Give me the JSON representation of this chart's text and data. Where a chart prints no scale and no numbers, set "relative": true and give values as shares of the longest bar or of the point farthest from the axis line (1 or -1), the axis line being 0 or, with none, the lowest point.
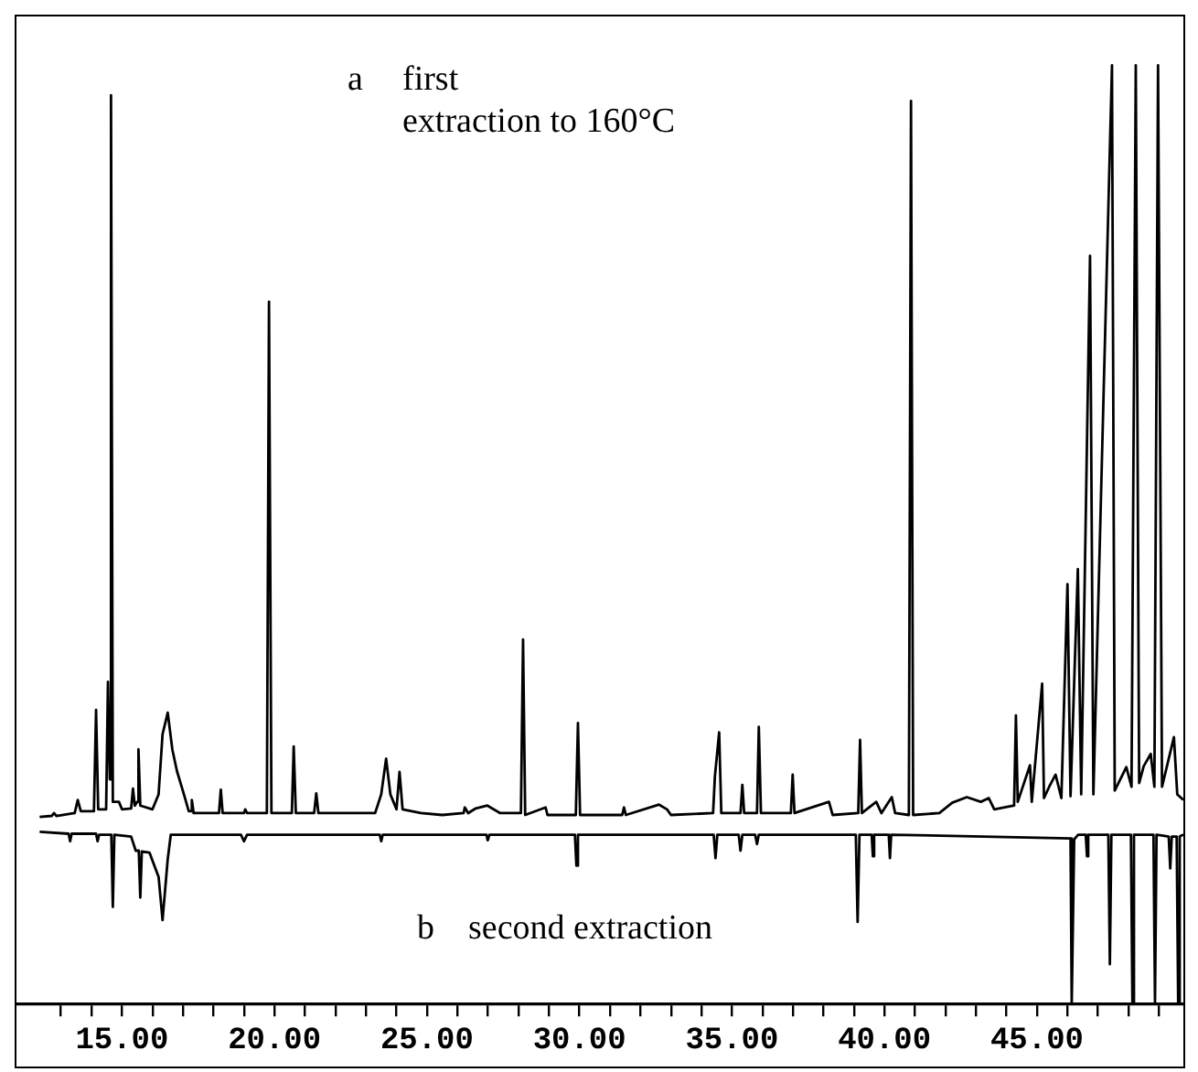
{
  "chart_data": {
    "type": "line",
    "relative": true,
    "marker": "none",
    "xlim": [
      11.6,
      49.8
    ],
    "xticks": [
      {
        "value": 13,
        "label": null
      },
      {
        "value": 14,
        "label": null
      },
      {
        "value": 15,
        "label": "15.00"
      },
      {
        "value": 16,
        "label": null
      },
      {
        "value": 17,
        "label": null
      },
      {
        "value": 18,
        "label": null
      },
      {
        "value": 19,
        "label": null
      },
      {
        "value": 20,
        "label": "20.00"
      },
      {
        "value": 21,
        "label": null
      },
      {
        "value": 22,
        "label": null
      },
      {
        "value": 23,
        "label": null
      },
      {
        "value": 24,
        "label": null
      },
      {
        "value": 25,
        "label": "25.00"
      },
      {
        "value": 26,
        "label": null
      },
      {
        "value": 27,
        "label": null
      },
      {
        "value": 28,
        "label": null
      },
      {
        "value": 29,
        "label": null
      },
      {
        "value": 30,
        "label": "30.00"
      },
      {
        "value": 31,
        "label": null
      },
      {
        "value": 32,
        "label": null
      },
      {
        "value": 33,
        "label": null
      },
      {
        "value": 34,
        "label": null
      },
      {
        "value": 35,
        "label": "35.00"
      },
      {
        "value": 36,
        "label": null
      },
      {
        "value": 37,
        "label": null
      },
      {
        "value": 38,
        "label": null
      },
      {
        "value": 39,
        "label": null
      },
      {
        "value": 40,
        "label": "40.00"
      },
      {
        "value": 41,
        "label": null
      },
      {
        "value": 42,
        "label": null
      },
      {
        "value": 43,
        "label": null
      },
      {
        "value": 44,
        "label": null
      },
      {
        "value": 45,
        "label": "45.00"
      },
      {
        "value": 46,
        "label": null
      },
      {
        "value": 47,
        "label": null
      },
      {
        "value": 48,
        "label": null
      },
      {
        "value": 49,
        "label": null
      }
    ],
    "annotations": [
      "a",
      "first\nextraction to 160°C",
      "b",
      "second extraction"
    ],
    "series": [
      {
        "color": "#000000",
        "x": [
          12.3,
          12.7,
          12.77,
          12.85,
          13.45,
          13.55,
          13.65,
          14.08,
          14.15,
          14.22,
          14.48,
          14.54,
          14.6,
          14.64,
          14.7,
          14.9,
          15.0,
          15.3,
          15.36,
          15.42,
          15.5,
          15.54,
          15.6,
          16.0,
          16.2,
          16.33,
          16.5,
          16.65,
          16.8,
          17.03,
          17.19,
          17.25,
          17.29,
          17.35,
          18.18,
          18.24,
          18.3,
          19.0,
          19.04,
          19.1,
          19.75,
          19.82,
          19.9,
          20.57,
          20.63,
          20.7,
          21.3,
          21.37,
          21.44,
          23.3,
          23.5,
          23.66,
          23.8,
          23.9,
          24.0,
          24.1,
          24.2,
          24.8,
          25.5,
          26.2,
          26.24,
          26.35,
          26.6,
          26.98,
          27.4,
          28.08,
          28.15,
          28.22,
          28.89,
          28.95,
          29.88,
          29.95,
          30.02,
          31.4,
          31.46,
          31.52,
          32.61,
          32.87,
          33.0,
          34.38,
          34.44,
          34.58,
          34.65,
          35.28,
          35.34,
          35.4,
          35.82,
          35.88,
          35.95,
          36.93,
          36.99,
          37.05,
          38.18,
          38.3,
          39.14,
          39.2,
          39.26,
          39.73,
          39.9,
          40.24,
          40.35,
          40.8,
          40.87,
          40.94,
          41.8,
          42.22,
          42.7,
          43.16,
          43.42,
          43.6,
          44.25,
          44.31,
          44.37,
          44.77,
          44.83,
          45.17,
          45.23,
          45.4,
          45.61,
          45.8,
          46.0,
          46.1,
          46.34,
          46.45,
          46.74,
          46.85,
          47.46,
          47.55,
          47.93,
          48.1,
          48.24,
          48.35,
          48.5,
          48.73,
          48.85,
          48.97,
          49.1,
          49.49,
          49.6,
          49.8
        ],
        "values": [
          0.199,
          0.2,
          0.203,
          0.2,
          0.203,
          0.217,
          0.205,
          0.205,
          0.313,
          0.207,
          0.207,
          0.343,
          0.239,
          0.968,
          0.215,
          0.215,
          0.207,
          0.208,
          0.229,
          0.211,
          0.215,
          0.271,
          0.211,
          0.207,
          0.223,
          0.287,
          0.31,
          0.271,
          0.248,
          0.223,
          0.205,
          0.205,
          0.217,
          0.203,
          0.203,
          0.228,
          0.203,
          0.203,
          0.207,
          0.203,
          0.203,
          0.748,
          0.203,
          0.203,
          0.274,
          0.203,
          0.203,
          0.224,
          0.203,
          0.203,
          0.223,
          0.261,
          0.223,
          0.215,
          0.207,
          0.247,
          0.207,
          0.203,
          0.201,
          0.203,
          0.209,
          0.203,
          0.208,
          0.211,
          0.203,
          0.203,
          0.388,
          0.201,
          0.209,
          0.201,
          0.201,
          0.299,
          0.201,
          0.201,
          0.209,
          0.201,
          0.212,
          0.207,
          0.201,
          0.203,
          0.242,
          0.289,
          0.203,
          0.203,
          0.233,
          0.203,
          0.203,
          0.295,
          0.203,
          0.203,
          0.244,
          0.203,
          0.215,
          0.201,
          0.203,
          0.281,
          0.203,
          0.215,
          0.203,
          0.22,
          0.203,
          0.201,
          0.962,
          0.201,
          0.203,
          0.214,
          0.22,
          0.215,
          0.219,
          0.207,
          0.211,
          0.307,
          0.215,
          0.254,
          0.215,
          0.341,
          0.219,
          0.231,
          0.244,
          0.219,
          0.447,
          0.221,
          0.463,
          0.223,
          0.797,
          0.223,
          1,
          0.227,
          0.252,
          0.231,
          1,
          0.235,
          0.253,
          0.266,
          0.231,
          1,
          0.231,
          0.284,
          0.223,
          0.217
        ]
      },
      {
        "color": "#000000",
        "x": [
          12.3,
          13.25,
          13.3,
          13.35,
          14.15,
          14.2,
          14.25,
          14.65,
          14.7,
          14.75,
          15.3,
          15.45,
          15.55,
          15.6,
          15.65,
          15.9,
          16.2,
          16.33,
          16.5,
          16.6,
          18.9,
          19.0,
          19.1,
          23.45,
          23.5,
          23.55,
          26.95,
          26.99,
          27.05,
          29.85,
          29.9,
          29.95,
          34.4,
          34.46,
          34.52,
          35.22,
          35.28,
          35.34,
          35.76,
          35.82,
          35.88,
          39.06,
          39.12,
          39.18,
          39.58,
          39.62,
          39.66,
          40.14,
          40.18,
          40.22,
          46.1,
          46.14,
          46.22,
          46.35,
          46.6,
          46.64,
          46.68,
          47.34,
          47.39,
          47.44,
          48.08,
          48.13,
          48.18,
          48.82,
          48.87,
          48.92,
          49.32,
          49.37,
          49.42,
          49.58,
          49.63,
          49.68,
          49.8
        ],
        "values": [
          0.183,
          0.181,
          0.173,
          0.181,
          0.181,
          0.173,
          0.18,
          0.18,
          0.103,
          0.18,
          0.178,
          0.163,
          0.163,
          0.113,
          0.162,
          0.161,
          0.135,
          0.089,
          0.154,
          0.18,
          0.18,
          0.173,
          0.18,
          0.18,
          0.173,
          0.18,
          0.18,
          0.174,
          0.18,
          0.18,
          0.147,
          0.18,
          0.18,
          0.155,
          0.18,
          0.18,
          0.163,
          0.18,
          0.18,
          0.17,
          0.18,
          0.18,
          0.087,
          0.18,
          0.18,
          0.157,
          0.18,
          0.18,
          0.155,
          0.18,
          0.176,
          0,
          0.175,
          0.18,
          0.18,
          0.157,
          0.18,
          0.18,
          0.042,
          0.18,
          0.18,
          0,
          0.18,
          0.18,
          0,
          0.18,
          0.178,
          0.144,
          0.178,
          0.178,
          0,
          0.178,
          0.18
        ]
      }
    ]
  }
}
